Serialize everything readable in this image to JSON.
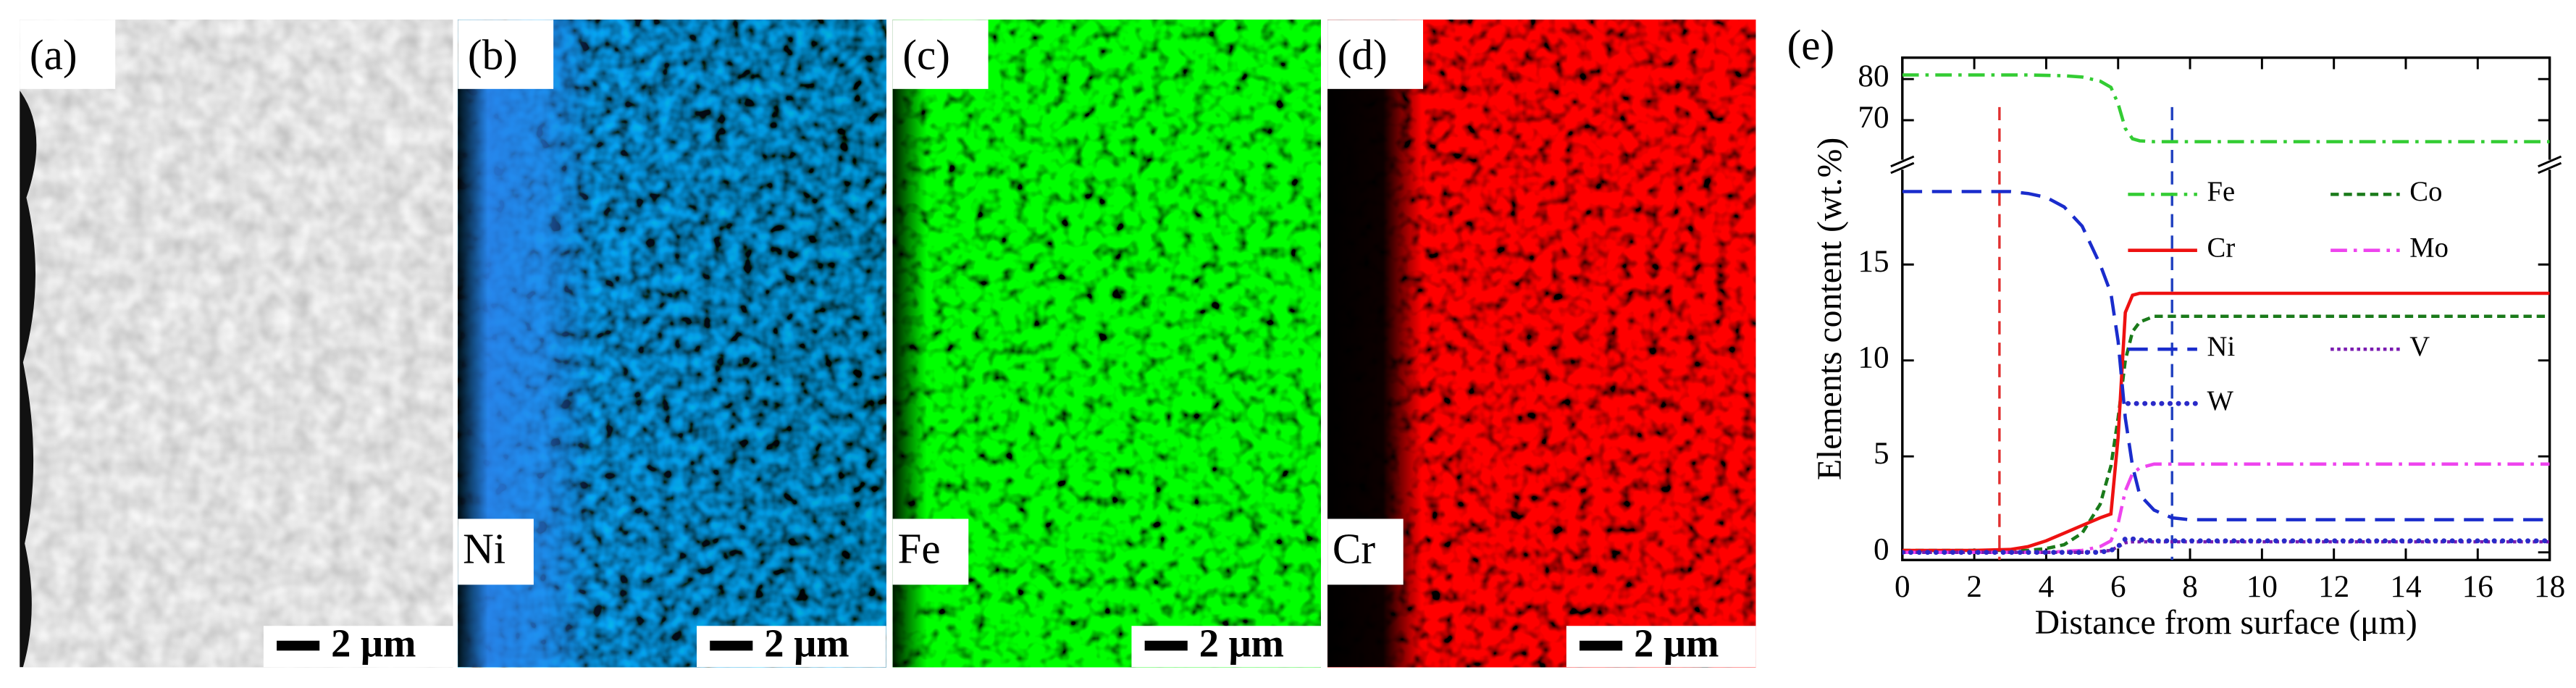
{
  "panels": [
    {
      "label": "(a)",
      "scale_bar": "2 μm"
    },
    {
      "label": "(b)",
      "element": "Ni",
      "scale_bar": "2 μm"
    },
    {
      "label": "(c)",
      "element": "Fe",
      "scale_bar": "2 μm"
    },
    {
      "label": "(d)",
      "element": "Cr",
      "scale_bar": "2 μm"
    }
  ],
  "chart_data": {
    "type": "line",
    "panel_label": "(e)",
    "x_label": "Distance from surface (μm)",
    "y_label": "Elements content (wt.%)",
    "xlim": [
      0,
      18
    ],
    "xticks": [
      0,
      2,
      4,
      6,
      8,
      10,
      12,
      14,
      16,
      18
    ],
    "ylim": [
      -0.4,
      20.2
    ],
    "yticks": [
      0,
      5,
      10,
      15
    ],
    "upper_ylim": [
      59.2,
      85.2
    ],
    "upper_yticks": [
      70,
      80
    ],
    "x": [
      0,
      1,
      2,
      3,
      3.5,
      4,
      4.5,
      5,
      5.5,
      5.8,
      6,
      6.2,
      6.4,
      6.6,
      7,
      7.5,
      8,
      10,
      12,
      14,
      16,
      18
    ],
    "series": [
      {
        "name": "Fe",
        "color": "#33cc33",
        "style": "dash-dot",
        "axis": "upper",
        "values": [
          81,
          81,
          81,
          81,
          81,
          80.9,
          80.8,
          80.5,
          79.5,
          78,
          74,
          68,
          65.5,
          65,
          64.8,
          64.8,
          64.8,
          64.8,
          64.8,
          64.8,
          64.8,
          64.8
        ]
      },
      {
        "name": "Co",
        "color": "#1a7a1a",
        "style": "dash",
        "values": [
          0.1,
          0.1,
          0.1,
          0.1,
          0.1,
          0.2,
          0.4,
          1,
          2.5,
          4.5,
          7,
          10,
          11.5,
          12,
          12.3,
          12.3,
          12.3,
          12.3,
          12.3,
          12.3,
          12.3,
          12.3
        ]
      },
      {
        "name": "Cr",
        "color": "#ee1111",
        "style": "solid",
        "values": [
          0.1,
          0.1,
          0.1,
          0.15,
          0.3,
          0.6,
          1.0,
          1.4,
          1.8,
          2.0,
          6,
          12.5,
          13.4,
          13.5,
          13.5,
          13.5,
          13.5,
          13.5,
          13.5,
          13.5,
          13.5,
          13.5
        ]
      },
      {
        "name": "Mo",
        "color": "#ee44ee",
        "style": "dash-dot",
        "values": [
          0,
          0,
          0,
          0,
          0,
          0,
          0.05,
          0.1,
          0.3,
          0.6,
          1.5,
          3.2,
          4.1,
          4.4,
          4.6,
          4.6,
          4.6,
          4.6,
          4.6,
          4.6,
          4.6,
          4.6
        ]
      },
      {
        "name": "Ni",
        "color": "#1a2ccc",
        "style": "long-dash",
        "values": [
          18.8,
          18.8,
          18.8,
          18.8,
          18.7,
          18.5,
          18,
          17,
          15,
          13.5,
          11,
          7,
          4.5,
          3,
          2.2,
          1.8,
          1.7,
          1.7,
          1.7,
          1.7,
          1.7,
          1.7
        ]
      },
      {
        "name": "V",
        "color": "#7a1ab0",
        "style": "dot",
        "values": [
          0,
          0,
          0,
          0,
          0,
          0,
          0,
          0,
          0.05,
          0.1,
          0.3,
          0.5,
          0.55,
          0.55,
          0.55,
          0.55,
          0.55,
          0.55,
          0.55,
          0.55,
          0.55,
          0.55
        ]
      },
      {
        "name": "W",
        "color": "#2a2ac8",
        "style": "round-dot",
        "values": [
          0,
          0,
          0,
          0,
          0,
          0,
          0,
          0,
          0,
          0.1,
          0.3,
          0.7,
          0.7,
          0.65,
          0.6,
          0.6,
          0.6,
          0.6,
          0.6,
          0.6,
          0.6,
          0.6
        ]
      }
    ],
    "reference_lines": [
      {
        "x": 2.7,
        "color": "#e03030"
      },
      {
        "x": 7.5,
        "color": "#2040c0"
      }
    ]
  }
}
